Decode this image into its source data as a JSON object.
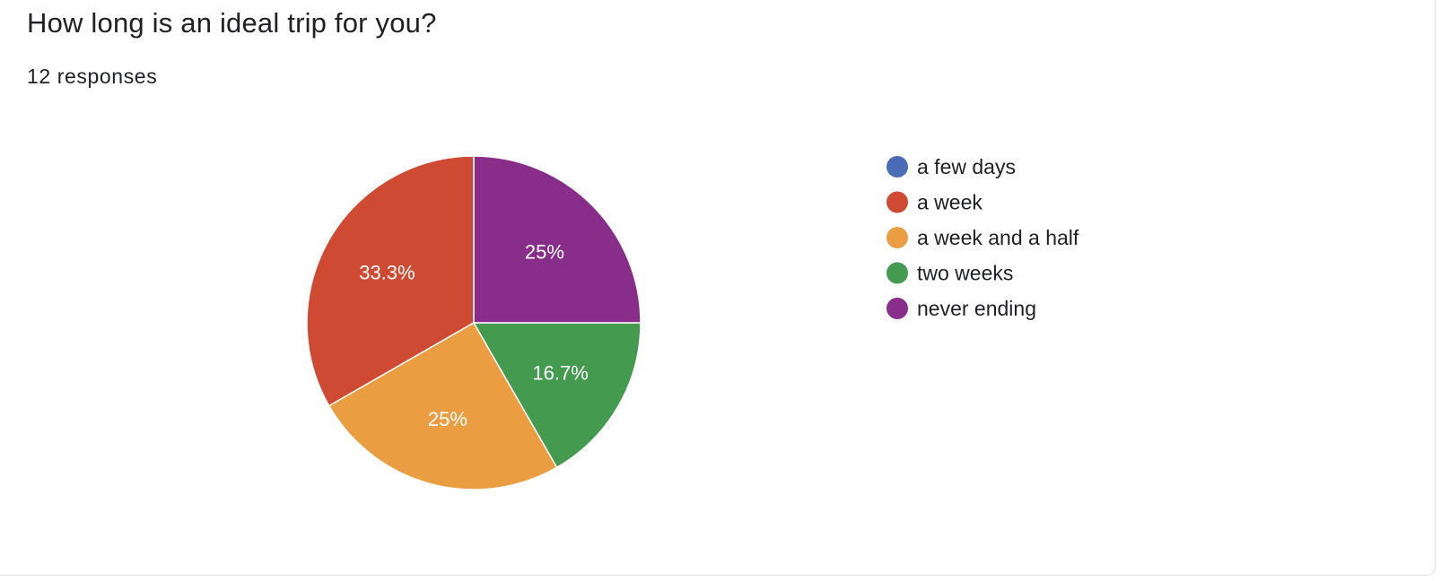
{
  "header": {
    "title": "How long is an ideal trip for you?",
    "responses": "12 responses"
  },
  "chart_data": {
    "type": "pie",
    "categories": [
      "a few days",
      "a week",
      "a week and a half",
      "two weeks",
      "never ending"
    ],
    "values": [
      0,
      33.3,
      25,
      16.7,
      25
    ],
    "labels": [
      "",
      "33.3%",
      "25%",
      "16.7%",
      "25%"
    ],
    "colors": [
      "#4a6bb5",
      "#cf4a32",
      "#eb9e41",
      "#449a4f",
      "#882d8a"
    ],
    "legend_position": "right"
  }
}
